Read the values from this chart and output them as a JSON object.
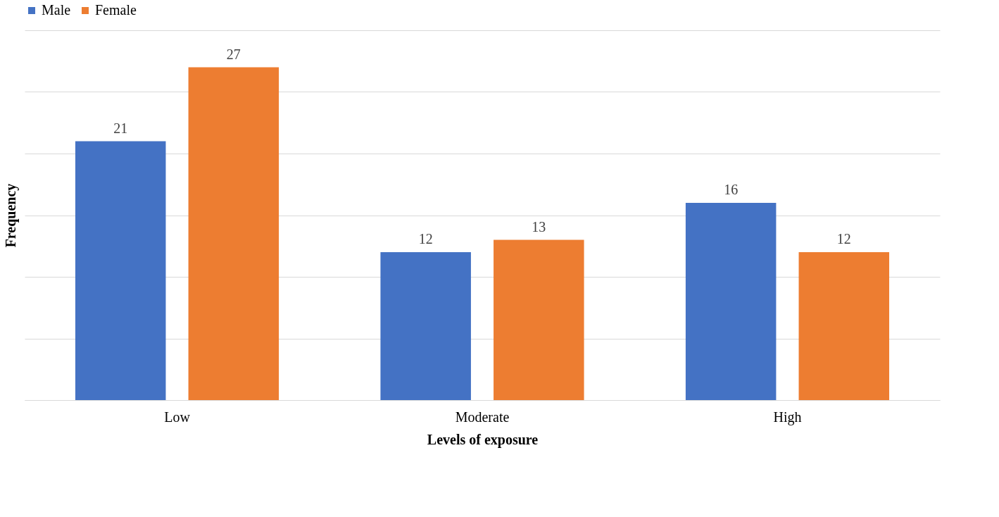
{
  "chart_data": {
    "type": "bar",
    "xlabel": "Levels of exposure",
    "ylabel": "Frequency",
    "categories": [
      "Low",
      "Moderate",
      "High"
    ],
    "series": [
      {
        "name": "Male",
        "color": "#4472c4",
        "values": [
          21,
          12,
          16
        ]
      },
      {
        "name": "Female",
        "color": "#ed7d31",
        "values": [
          27,
          13,
          12
        ]
      }
    ],
    "ylim": [
      0,
      30
    ],
    "yticks": [
      {
        "value": 0,
        "label": null
      },
      {
        "value": 5,
        "label": null
      },
      {
        "value": 10,
        "label": null
      },
      {
        "value": 15,
        "label": null
      },
      {
        "value": 20,
        "label": null
      },
      {
        "value": 25,
        "label": null
      },
      {
        "value": 30,
        "label": null
      }
    ],
    "tick_labels": "x",
    "grid": "y",
    "legend": "top",
    "data_labels": true
  }
}
